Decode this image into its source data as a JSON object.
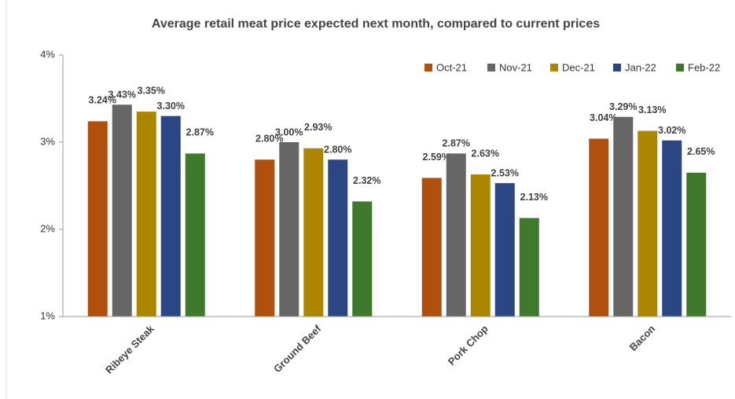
{
  "chart_data": {
    "type": "bar",
    "title": "Average retail meat price expected next month, compared to current prices",
    "categories": [
      "Ribeye Steak",
      "Ground Beef",
      "Pork Chop",
      "Bacon"
    ],
    "series": [
      {
        "name": "Oct-21",
        "color": "#b0500f",
        "values": [
          3.24,
          2.8,
          2.59,
          3.04
        ],
        "value_labels": [
          "3.24%",
          "2.80%",
          "2.59%",
          "3.04%"
        ]
      },
      {
        "name": "Nov-21",
        "color": "#666666",
        "values": [
          3.43,
          3.0,
          2.87,
          3.29
        ],
        "value_labels": [
          "3.43%",
          "3.00%",
          "2.87%",
          "3.29%"
        ]
      },
      {
        "name": "Dec-21",
        "color": "#ad8600",
        "values": [
          3.35,
          2.93,
          2.63,
          3.13
        ],
        "value_labels": [
          "3.35%",
          "2.93%",
          "2.63%",
          "3.13%"
        ]
      },
      {
        "name": "Jan-22",
        "color": "#2a4784",
        "values": [
          3.3,
          2.8,
          2.53,
          3.02
        ],
        "value_labels": [
          "3.30%",
          "2.80%",
          "2.53%",
          "3.02%"
        ]
      },
      {
        "name": "Feb-22",
        "color": "#3f7a2c",
        "values": [
          2.87,
          2.32,
          2.13,
          2.65
        ],
        "value_labels": [
          "2.87%",
          "2.32%",
          "2.13%",
          "2.65%"
        ]
      }
    ],
    "ylim": [
      1,
      4
    ],
    "yticks": [
      {
        "value": 1,
        "label": "1%"
      },
      {
        "value": 2,
        "label": "2%"
      },
      {
        "value": 3,
        "label": "3%"
      },
      {
        "value": 4,
        "label": "4%"
      }
    ],
    "grid": false,
    "legend": "top-right"
  }
}
